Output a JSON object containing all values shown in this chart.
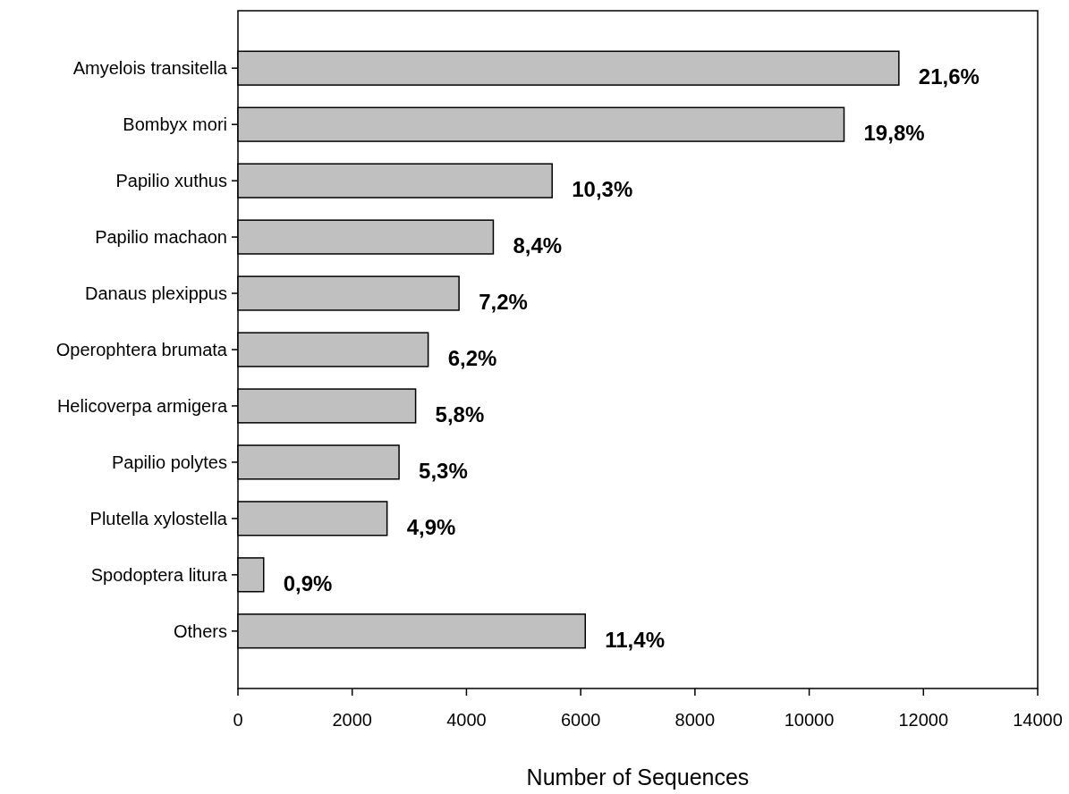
{
  "chart_data": {
    "type": "bar",
    "orientation": "horizontal",
    "xlabel": "Number of Sequences",
    "categories": [
      "Amyelois transitella",
      "Bombyx mori",
      "Papilio xuthus",
      "Papilio machaon",
      "Danaus plexippus",
      "Operophtera brumata",
      "Helicoverpa armigera",
      "Papilio polytes",
      "Plutella xylostella",
      "Spodoptera litura",
      "Others"
    ],
    "values": [
      11570,
      10610,
      5500,
      4470,
      3870,
      3330,
      3110,
      2820,
      2610,
      450,
      6080
    ],
    "annotations": [
      {
        "text": "21,6%",
        "x": 11570,
        "y": "Amyelois transitella"
      },
      {
        "text": "19,8%",
        "x": 10610,
        "y": "Bombyx mori"
      },
      {
        "text": "10,3%",
        "x": 5500,
        "y": "Papilio xuthus"
      },
      {
        "text": "8,4%",
        "x": 4470,
        "y": "Papilio machaon"
      },
      {
        "text": "7,2%",
        "x": 3870,
        "y": "Danaus plexippus"
      },
      {
        "text": "6,2%",
        "x": 3330,
        "y": "Operophtera brumata"
      },
      {
        "text": "5,8%",
        "x": 3110,
        "y": "Helicoverpa armigera"
      },
      {
        "text": "5,3%",
        "x": 2820,
        "y": "Papilio polytes"
      },
      {
        "text": "4,9%",
        "x": 2610,
        "y": "Plutella xylostella"
      },
      {
        "text": "0,9%",
        "x": 450,
        "y": "Spodoptera litura"
      },
      {
        "text": "11,4%",
        "x": 6080,
        "y": "Others"
      }
    ],
    "color": "#c0c0c0",
    "xlim": [
      0,
      14000
    ],
    "xticks": [
      0,
      2000,
      4000,
      6000,
      8000,
      10000,
      12000,
      14000
    ],
    "grid": false
  }
}
